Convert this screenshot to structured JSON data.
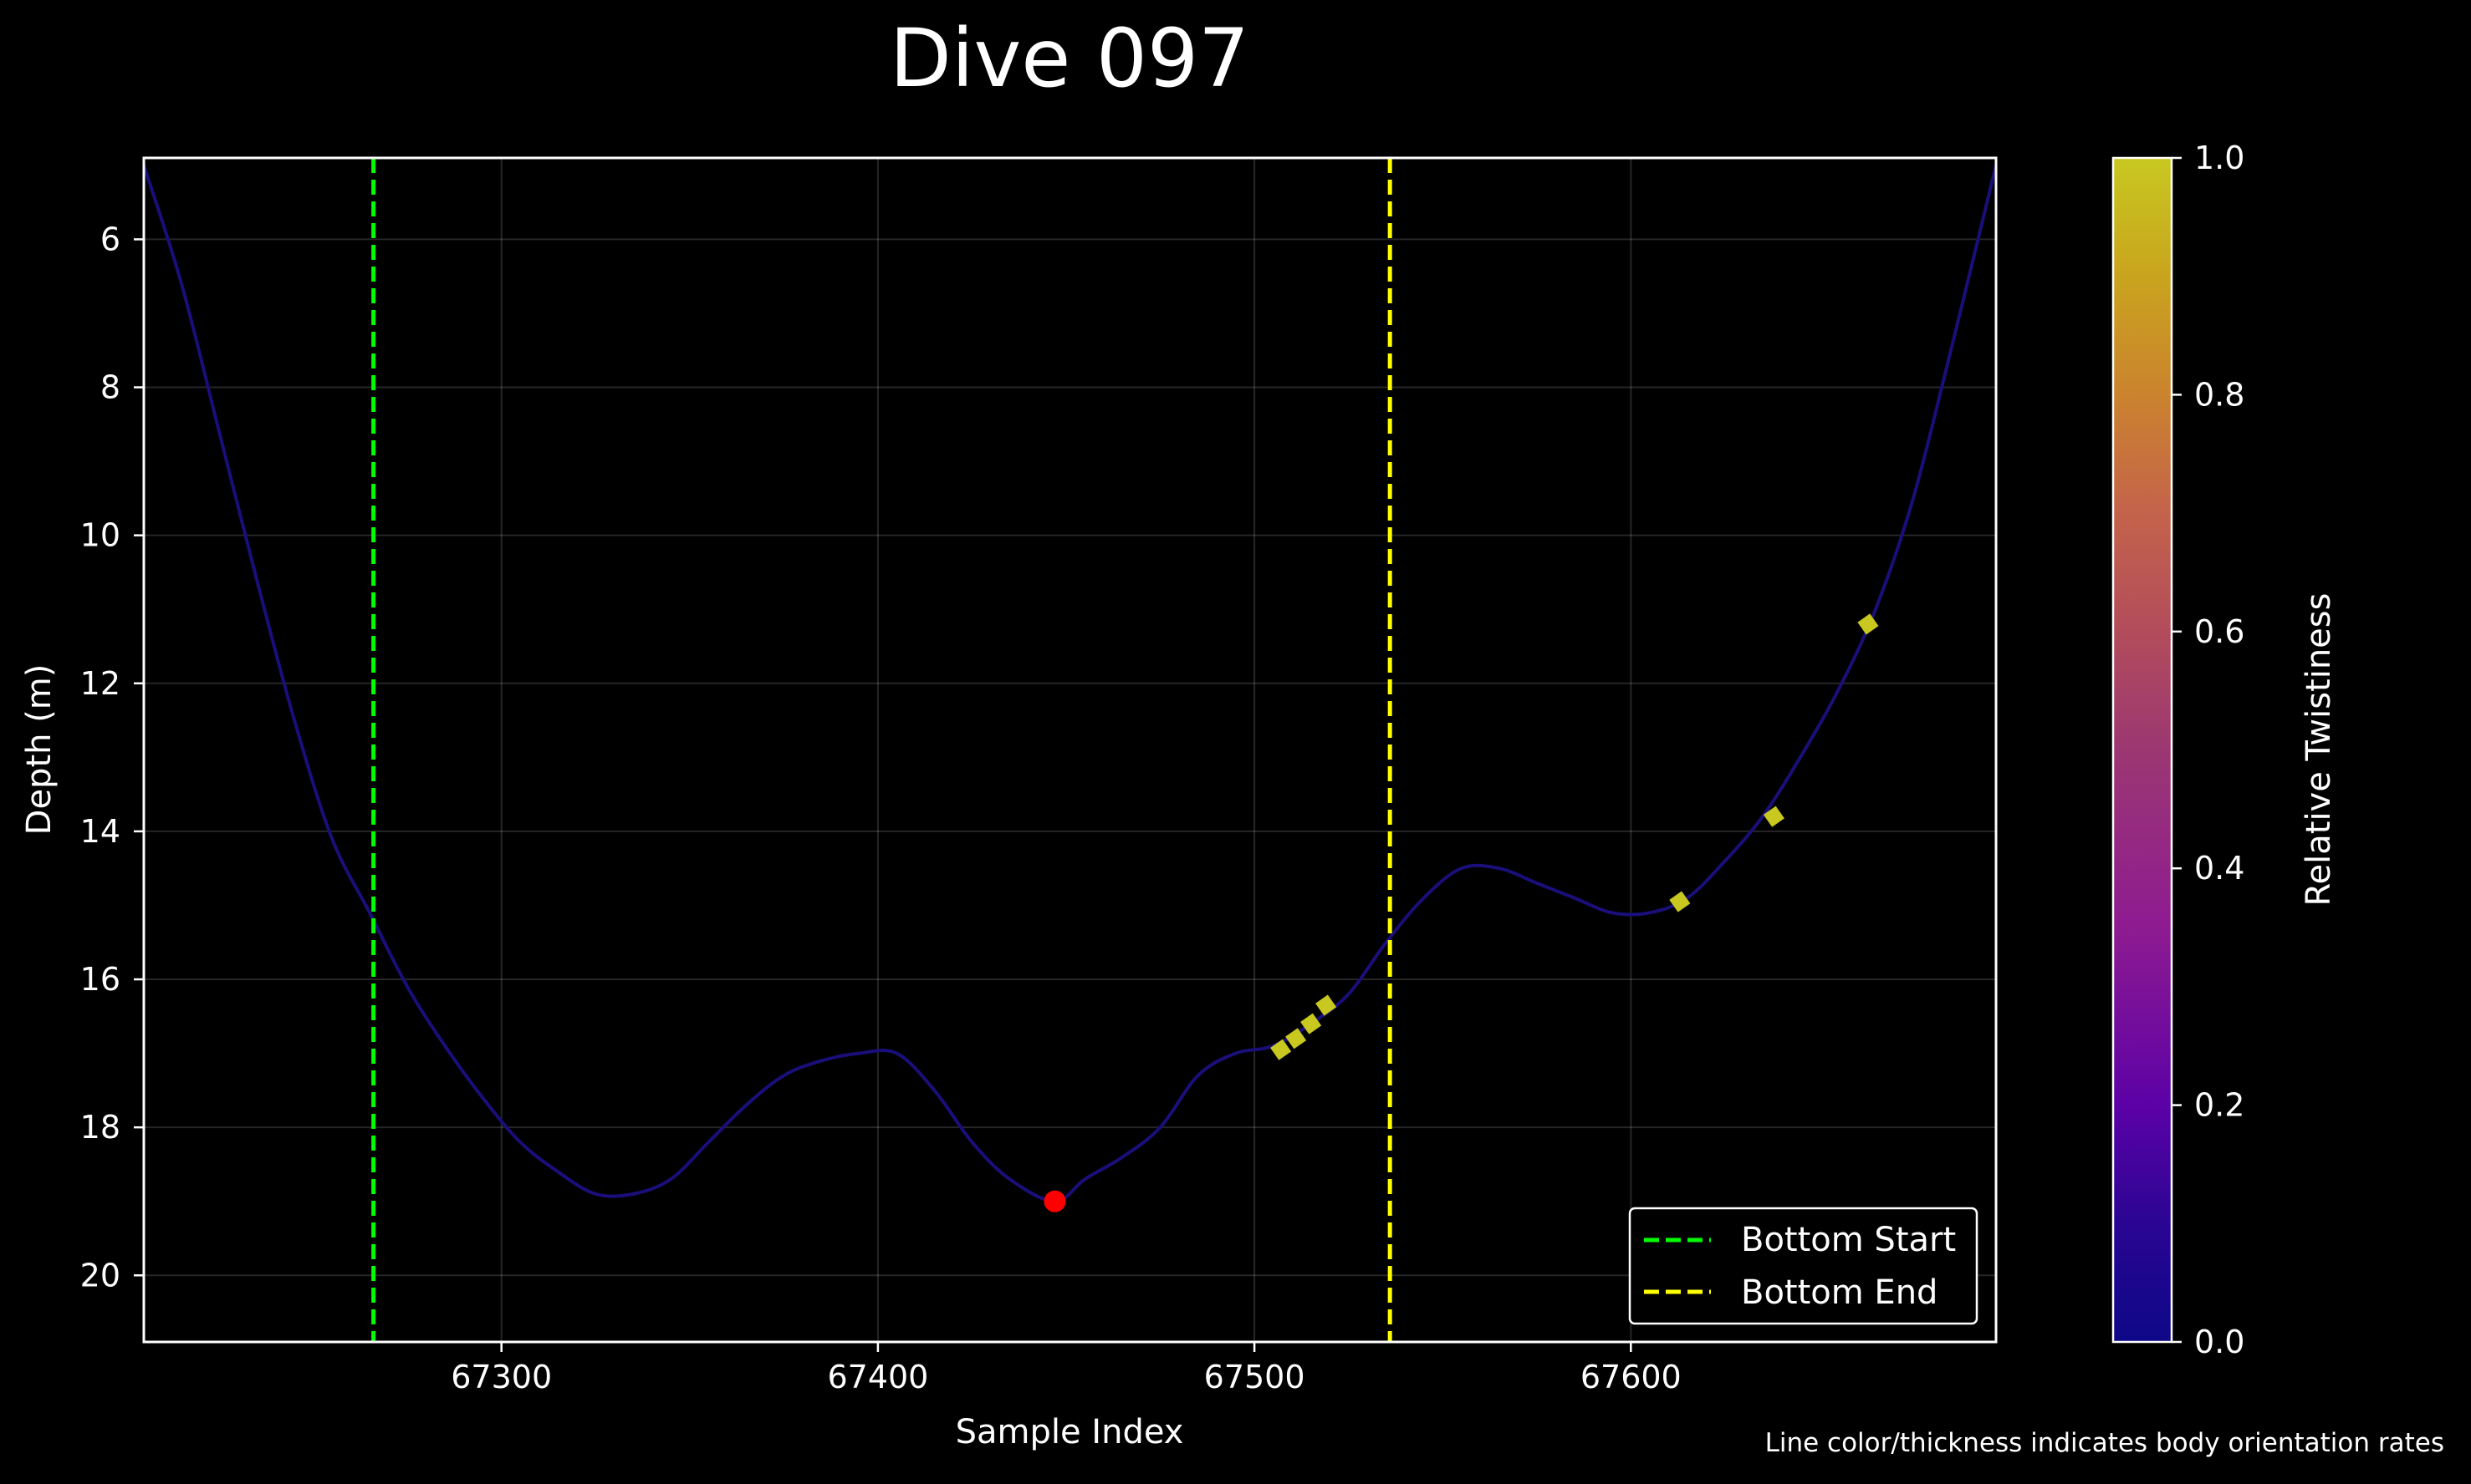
{
  "chart_data": {
    "type": "line",
    "title": "Dive 097",
    "xlabel": "Sample Index",
    "ylabel": "Depth (m)",
    "xlim": [
      67205,
      67697
    ],
    "ylim": [
      20.9,
      4.9
    ],
    "y_inverted": true,
    "x_ticks": [
      67300,
      67400,
      67500,
      67600
    ],
    "y_ticks": [
      6,
      8,
      10,
      12,
      14,
      16,
      18,
      20
    ],
    "grid": true,
    "background": "#000000",
    "line_color": "#1a0f7a",
    "series": [
      {
        "x": [
          67205,
          67215,
          67225,
          67235,
          67245,
          67255,
          67265,
          67275,
          67285,
          67295,
          67305,
          67315,
          67325,
          67335,
          67345,
          67355,
          67365,
          67375,
          67385,
          67395,
          67405,
          67415,
          67425,
          67435,
          67447,
          67455,
          67465,
          67475,
          67485,
          67495,
          67505,
          67515,
          67525,
          67535,
          67545,
          67555,
          67565,
          67575,
          67585,
          67595,
          67605,
          67615,
          67625,
          67635,
          67645,
          67655,
          67665,
          67675,
          67685,
          67697
        ],
        "y": [
          5.0,
          6.6,
          8.6,
          10.6,
          12.5,
          14.1,
          15.1,
          16.1,
          16.9,
          17.6,
          18.2,
          18.6,
          18.9,
          18.9,
          18.7,
          18.2,
          17.7,
          17.3,
          17.1,
          17.0,
          17.0,
          17.5,
          18.2,
          18.7,
          19.0,
          18.7,
          18.4,
          18.0,
          17.3,
          17.0,
          16.9,
          16.6,
          16.2,
          15.5,
          14.9,
          14.5,
          14.5,
          14.7,
          14.9,
          15.1,
          15.1,
          14.9,
          14.4,
          13.8,
          13.0,
          12.1,
          11.0,
          9.5,
          7.5,
          5.0
        ],
        "twistiness": [
          0.15,
          0.2,
          0.3,
          0.25,
          0.2,
          0.1,
          0.08,
          0.06,
          0.06,
          0.06,
          0.06,
          0.06,
          0.06,
          0.06,
          0.06,
          0.06,
          0.06,
          0.06,
          0.06,
          0.06,
          0.06,
          0.06,
          0.06,
          0.08,
          0.1,
          0.25,
          0.3,
          0.15,
          0.08,
          0.1,
          0.5,
          0.95,
          0.3,
          0.2,
          0.15,
          0.08,
          0.06,
          0.06,
          0.06,
          0.06,
          0.06,
          0.9,
          0.1,
          0.95,
          0.08,
          0.08,
          0.95,
          0.1,
          0.08,
          0.06
        ]
      }
    ],
    "highlight_segments": [
      {
        "x": 67507,
        "y": 16.95
      },
      {
        "x": 67511,
        "y": 16.8
      },
      {
        "x": 67515,
        "y": 16.6
      },
      {
        "x": 67519,
        "y": 16.35
      },
      {
        "x": 67613,
        "y": 14.95
      },
      {
        "x": 67638,
        "y": 13.8
      },
      {
        "x": 67663,
        "y": 11.2
      }
    ],
    "highlight_color": "#c8c820",
    "min_point": {
      "x": 67447,
      "y": 19.0,
      "color": "#ff0000"
    },
    "vlines": [
      {
        "x": 67266,
        "color": "#00ff00",
        "label": "Bottom Start"
      },
      {
        "x": 67536,
        "color": "#ffff00",
        "label": "Bottom End"
      }
    ],
    "legend": {
      "placement": "lower-right",
      "entries": [
        "Bottom Start",
        "Bottom End"
      ]
    },
    "colorbar": {
      "label": "Relative Twistiness",
      "colormap": "plasma",
      "range": [
        0.0,
        1.0
      ],
      "ticks": [
        "0.0",
        "0.2",
        "0.4",
        "0.6",
        "0.8",
        "1.0"
      ]
    },
    "annotation": "Line color/thickness indicates body orientation rates"
  }
}
